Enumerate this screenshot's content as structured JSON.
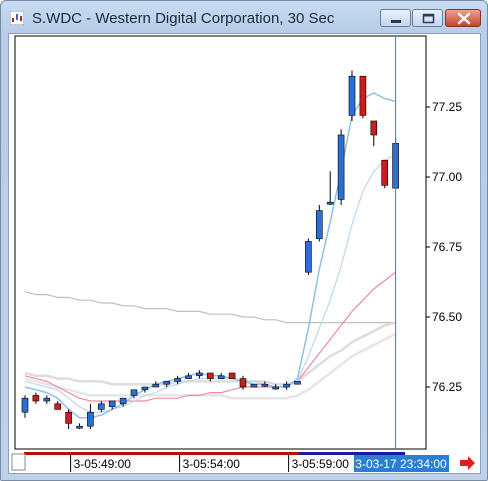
{
  "window": {
    "title": "S.WDC - Western Digital Corporation, 30 Sec"
  },
  "colors": {
    "up": "#2b6fd4",
    "down": "#c81e1e",
    "ma_fast_1": "#8fc0e8",
    "ma_fast_2": "#bcd8f0",
    "ma_pink": "#f08aa8",
    "ma_gray_1": "#dddddd",
    "ma_gray_2": "#e6e6e6",
    "ma_slow": "#bfbfbf",
    "cursor": "#2a7fd4",
    "axis_bar": "#b01010"
  },
  "chart_data": {
    "type": "candlestick",
    "y_ticks": [
      "77.25",
      "77.00",
      "76.75",
      "76.50",
      "76.25"
    ],
    "y_tick_values": [
      77.25,
      77.0,
      76.75,
      76.5,
      76.25
    ],
    "ylim": [
      76.08,
      77.3
    ],
    "x_labels": [
      "3-05:49:00",
      "3-05:54:00",
      "3-05:59:00"
    ],
    "x_label_index": [
      4,
      14,
      24
    ],
    "cursor_label": "3-03-17 23:34:00",
    "cursor_index": 34,
    "candles": [
      {
        "o": 76.16,
        "h": 76.22,
        "l": 76.14,
        "c": 76.21
      },
      {
        "o": 76.22,
        "h": 76.23,
        "l": 76.19,
        "c": 76.2
      },
      {
        "o": 76.2,
        "h": 76.22,
        "l": 76.19,
        "c": 76.21
      },
      {
        "o": 76.19,
        "h": 76.2,
        "l": 76.17,
        "c": 76.17
      },
      {
        "o": 76.16,
        "h": 76.17,
        "l": 76.1,
        "c": 76.12
      },
      {
        "o": 76.11,
        "h": 76.12,
        "l": 76.1,
        "c": 76.11
      },
      {
        "o": 76.11,
        "h": 76.19,
        "l": 76.1,
        "c": 76.16
      },
      {
        "o": 76.17,
        "h": 76.2,
        "l": 76.16,
        "c": 76.19
      },
      {
        "o": 76.18,
        "h": 76.2,
        "l": 76.17,
        "c": 76.2
      },
      {
        "o": 76.19,
        "h": 76.21,
        "l": 76.18,
        "c": 76.21
      },
      {
        "o": 76.22,
        "h": 76.24,
        "l": 76.21,
        "c": 76.24
      },
      {
        "o": 76.24,
        "h": 76.25,
        "l": 76.23,
        "c": 76.25
      },
      {
        "o": 76.25,
        "h": 76.27,
        "l": 76.25,
        "c": 76.26
      },
      {
        "o": 76.26,
        "h": 76.27,
        "l": 76.25,
        "c": 76.27
      },
      {
        "o": 76.27,
        "h": 76.29,
        "l": 76.26,
        "c": 76.28
      },
      {
        "o": 76.28,
        "h": 76.3,
        "l": 76.28,
        "c": 76.29
      },
      {
        "o": 76.29,
        "h": 76.31,
        "l": 76.28,
        "c": 76.3
      },
      {
        "o": 76.3,
        "h": 76.3,
        "l": 76.27,
        "c": 76.28
      },
      {
        "o": 76.28,
        "h": 76.3,
        "l": 76.28,
        "c": 76.29
      },
      {
        "o": 76.3,
        "h": 76.3,
        "l": 76.28,
        "c": 76.28
      },
      {
        "o": 76.28,
        "h": 76.29,
        "l": 76.24,
        "c": 76.25
      },
      {
        "o": 76.25,
        "h": 76.26,
        "l": 76.25,
        "c": 76.26
      },
      {
        "o": 76.26,
        "h": 76.27,
        "l": 76.25,
        "c": 76.26
      },
      {
        "o": 76.25,
        "h": 76.26,
        "l": 76.24,
        "c": 76.25
      },
      {
        "o": 76.25,
        "h": 76.27,
        "l": 76.24,
        "c": 76.26
      },
      {
        "o": 76.26,
        "h": 76.27,
        "l": 76.26,
        "c": 76.27
      },
      {
        "o": 76.66,
        "h": 76.78,
        "l": 76.65,
        "c": 76.77
      },
      {
        "o": 76.78,
        "h": 76.9,
        "l": 76.77,
        "c": 76.88
      },
      {
        "o": 76.91,
        "h": 77.02,
        "l": 76.9,
        "c": 76.91
      },
      {
        "o": 76.92,
        "h": 77.17,
        "l": 76.9,
        "c": 77.15
      },
      {
        "o": 77.22,
        "h": 77.38,
        "l": 77.2,
        "c": 77.36
      },
      {
        "o": 77.36,
        "h": 77.36,
        "l": 77.21,
        "c": 77.22
      },
      {
        "o": 77.2,
        "h": 77.2,
        "l": 77.11,
        "c": 77.15
      },
      {
        "o": 77.06,
        "h": 77.06,
        "l": 76.96,
        "c": 76.97
      },
      {
        "o": 76.96,
        "h": 77.14,
        "l": 76.96,
        "c": 77.12
      }
    ],
    "series": [
      {
        "key": "ma_slow",
        "values": [
          76.59,
          76.58,
          76.58,
          76.57,
          76.57,
          76.56,
          76.56,
          76.55,
          76.55,
          76.54,
          76.54,
          76.53,
          76.53,
          76.53,
          76.52,
          76.52,
          76.52,
          76.51,
          76.51,
          76.51,
          76.5,
          76.5,
          76.49,
          76.49,
          76.48,
          76.48,
          76.48,
          76.48,
          76.48,
          76.48,
          76.48,
          76.48,
          76.48,
          76.48,
          76.48
        ]
      },
      {
        "key": "ma_gray_1",
        "values": [
          76.3,
          76.29,
          76.29,
          76.28,
          76.28,
          76.27,
          76.27,
          76.27,
          76.26,
          76.26,
          76.26,
          76.26,
          76.26,
          76.26,
          76.27,
          76.27,
          76.27,
          76.27,
          76.27,
          76.27,
          76.27,
          76.27,
          76.27,
          76.26,
          76.26,
          76.27,
          76.3,
          76.33,
          76.36,
          76.38,
          76.41,
          76.43,
          76.45,
          76.47,
          76.48
        ]
      },
      {
        "key": "ma_gray_2",
        "values": [
          76.28,
          76.27,
          76.26,
          76.25,
          76.24,
          76.23,
          76.22,
          76.22,
          76.22,
          76.22,
          76.22,
          76.22,
          76.22,
          76.22,
          76.22,
          76.22,
          76.22,
          76.22,
          76.22,
          76.21,
          76.21,
          76.21,
          76.21,
          76.21,
          76.21,
          76.22,
          76.24,
          76.27,
          76.3,
          76.33,
          76.36,
          76.38,
          76.4,
          76.42,
          76.44
        ]
      },
      {
        "key": "ma_pink",
        "values": [
          76.29,
          76.28,
          76.27,
          76.25,
          76.23,
          76.21,
          76.2,
          76.2,
          76.2,
          76.2,
          76.2,
          76.2,
          76.21,
          76.21,
          76.21,
          76.22,
          76.22,
          76.23,
          76.23,
          76.24,
          76.25,
          76.25,
          76.25,
          76.25,
          76.25,
          76.27,
          76.32,
          76.37,
          76.42,
          76.47,
          76.52,
          76.56,
          76.6,
          76.63,
          76.66
        ]
      },
      {
        "key": "ma_fast_2",
        "values": [
          76.27,
          76.26,
          76.25,
          76.24,
          76.21,
          76.18,
          76.16,
          76.16,
          76.17,
          76.18,
          76.2,
          76.22,
          76.23,
          76.25,
          76.26,
          76.27,
          76.28,
          76.28,
          76.28,
          76.28,
          76.27,
          76.27,
          76.26,
          76.25,
          76.25,
          76.27,
          76.36,
          76.46,
          76.56,
          76.68,
          76.83,
          76.95,
          77.02,
          77.06,
          77.08
        ]
      },
      {
        "key": "ma_fast_1",
        "values": [
          76.25,
          76.24,
          76.23,
          76.21,
          76.17,
          76.14,
          76.14,
          76.15,
          76.17,
          76.19,
          76.22,
          76.24,
          76.26,
          76.27,
          76.28,
          76.29,
          76.3,
          76.29,
          76.29,
          76.28,
          76.27,
          76.26,
          76.26,
          76.25,
          76.25,
          76.28,
          76.46,
          76.67,
          76.84,
          77.02,
          77.22,
          77.28,
          77.3,
          77.28,
          77.27
        ]
      }
    ]
  }
}
